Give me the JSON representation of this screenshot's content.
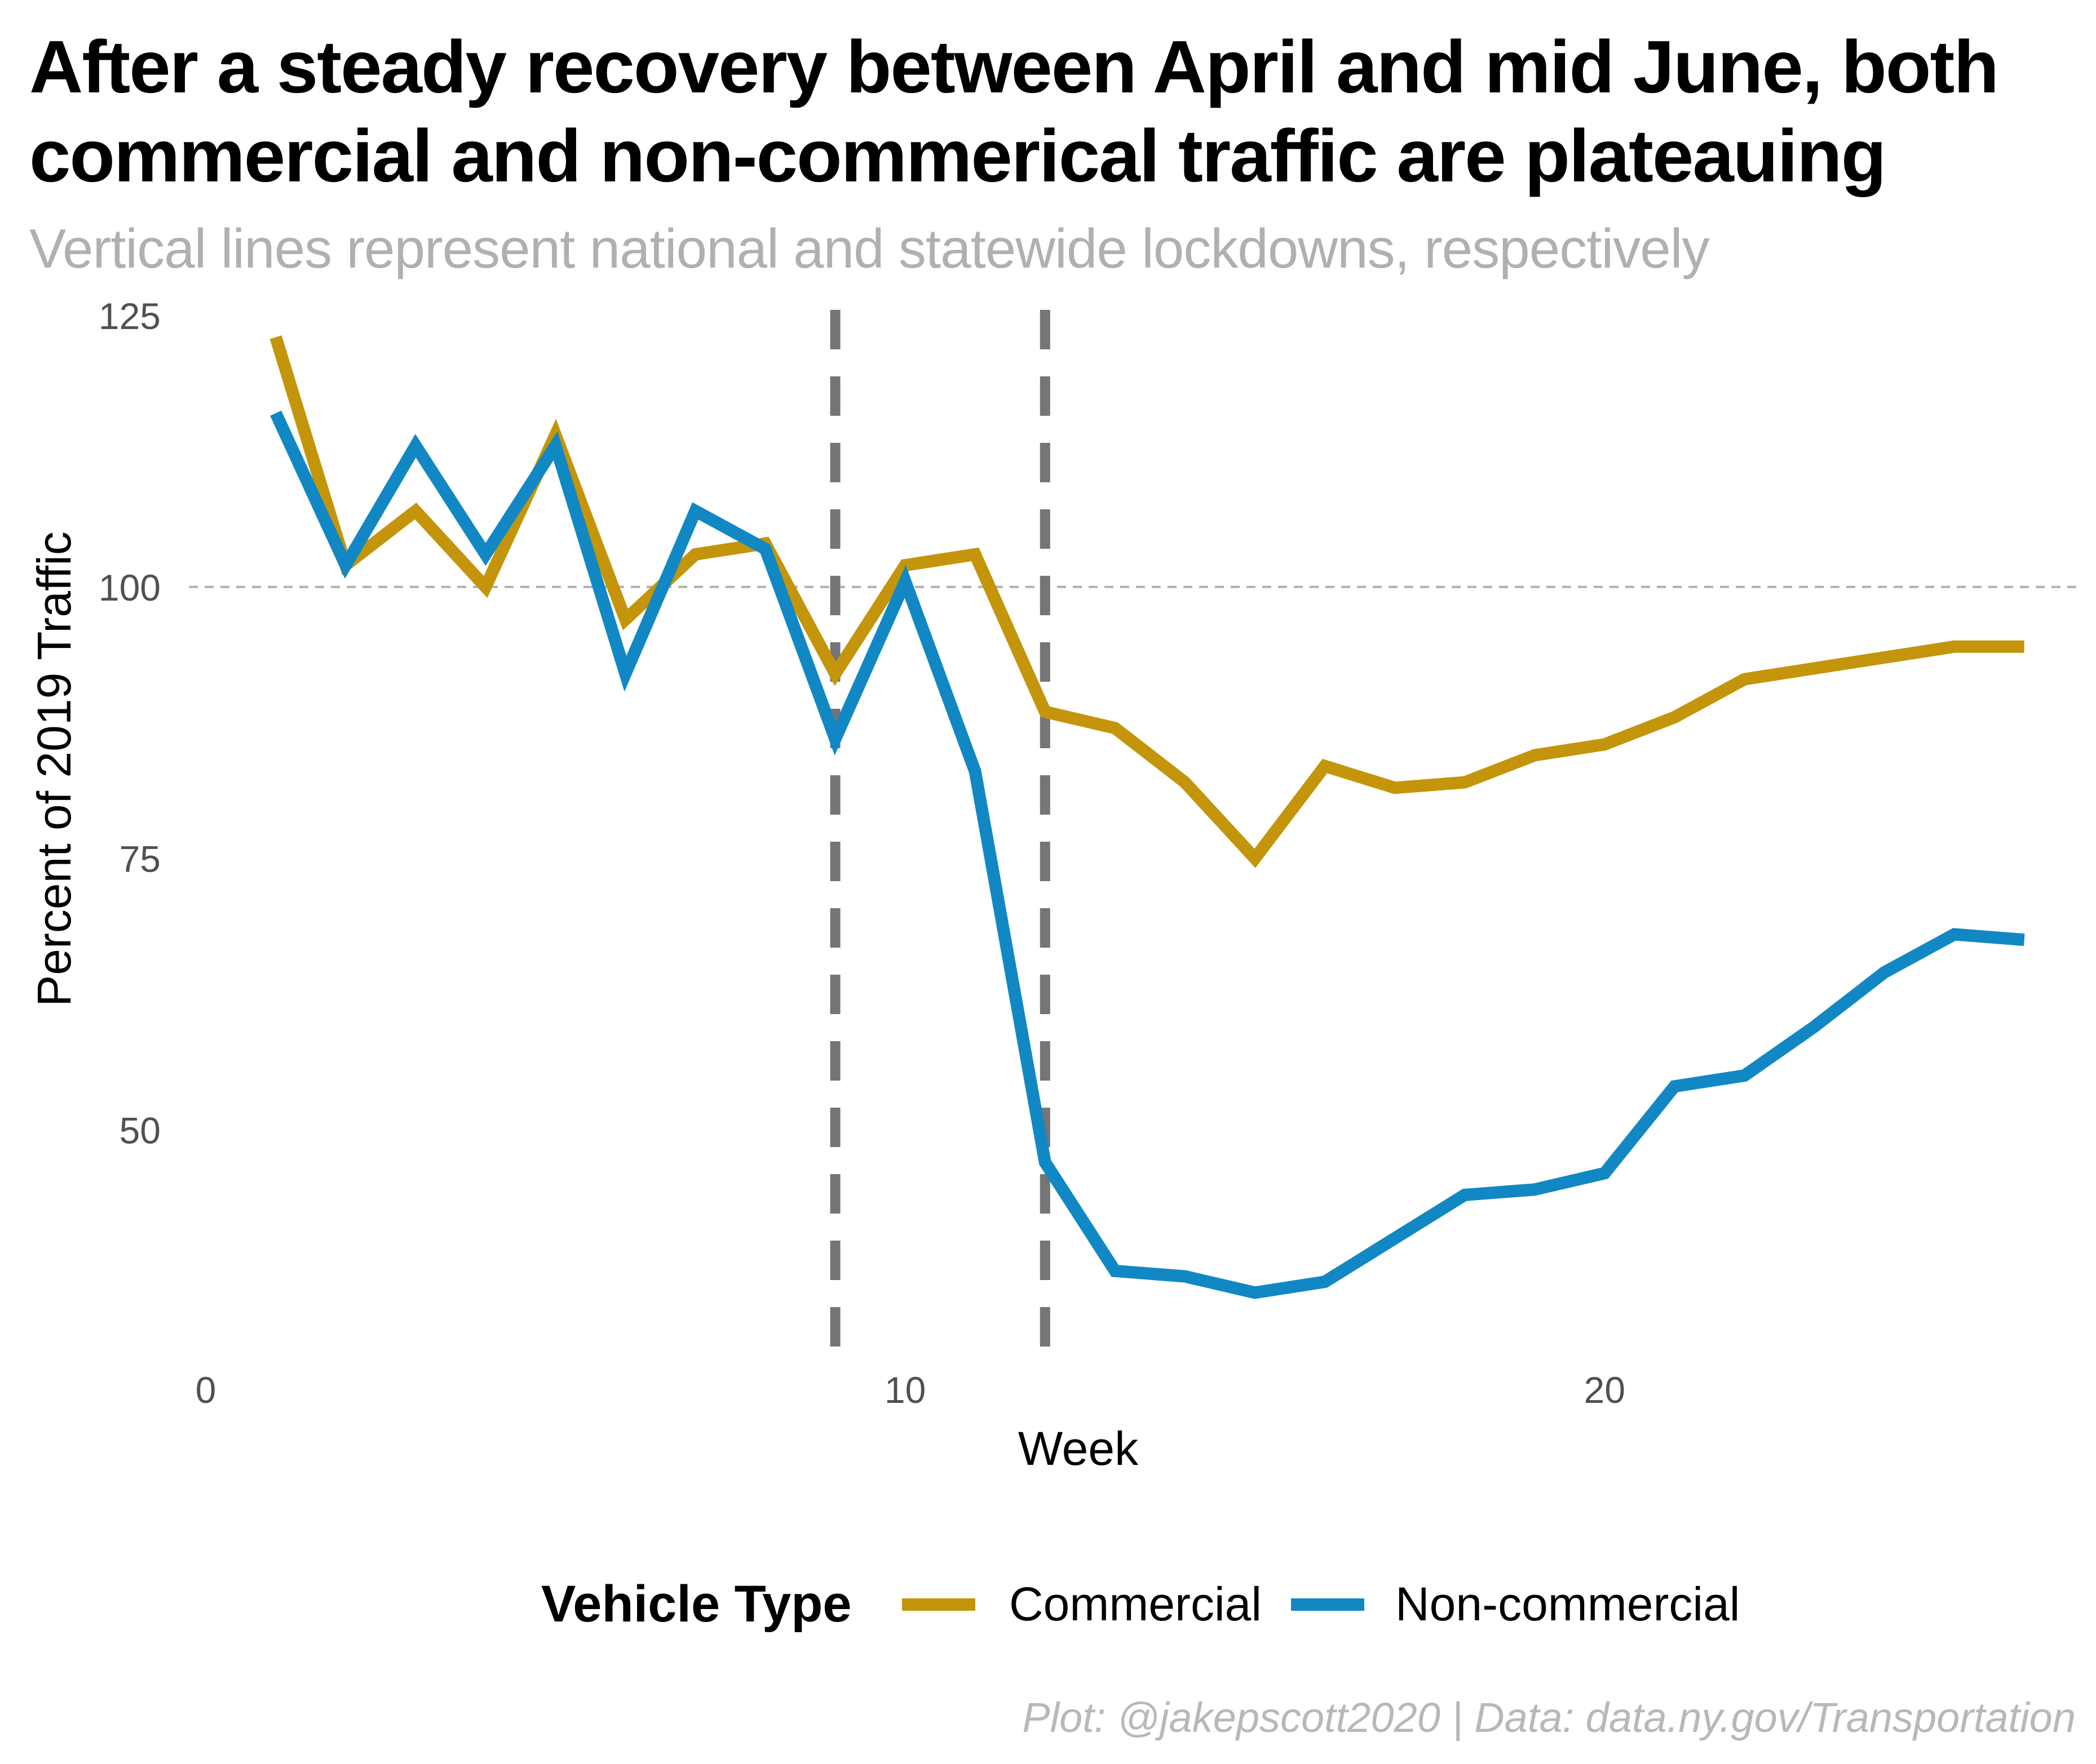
{
  "chart_data": {
    "type": "line",
    "title": "After a steady recovery between April and mid June, both commercial and non-commerical traffic are plateauing",
    "subtitle": "Vertical lines represent national and statewide lockdowns, respectively",
    "caption": "Plot: @jakepscott2020 | Data: data.ny.gov/Transportation",
    "xlabel": "Week",
    "ylabel": "Percent of 2019 Traffic",
    "xlim": [
      0,
      26.8
    ],
    "ylim": [
      29,
      125
    ],
    "x_ticks": [
      0,
      10,
      20
    ],
    "y_ticks": [
      50,
      75,
      100,
      125
    ],
    "reference_hline": 100,
    "vlines": [
      9,
      12
    ],
    "grid": false,
    "legend": {
      "title": "Vehicle Type",
      "position": "bottom"
    },
    "x": [
      1,
      2,
      3,
      4,
      5,
      6,
      7,
      8,
      9,
      10,
      11,
      12,
      13,
      14,
      15,
      16,
      17,
      18,
      19,
      20,
      21,
      22,
      23,
      24,
      25,
      26
    ],
    "series": [
      {
        "name": "Commercial",
        "color": "#C4950B",
        "values": [
          123,
          102,
          107,
          100,
          114,
          97,
          103,
          104,
          92,
          102,
          103,
          88.5,
          87,
          82,
          75,
          83.5,
          81.5,
          82,
          84.5,
          85.5,
          88,
          91.5,
          92.5,
          93.5,
          94.5,
          94.5
        ]
      },
      {
        "name": "Non-commercial",
        "color": "#1188C4",
        "values": [
          116,
          102,
          113,
          103,
          113,
          92,
          107,
          103.5,
          86,
          100.5,
          83,
          47,
          37,
          36.5,
          35,
          36,
          40,
          44,
          44.5,
          46,
          54,
          55,
          59.5,
          64.5,
          68,
          67.5
        ]
      }
    ]
  }
}
